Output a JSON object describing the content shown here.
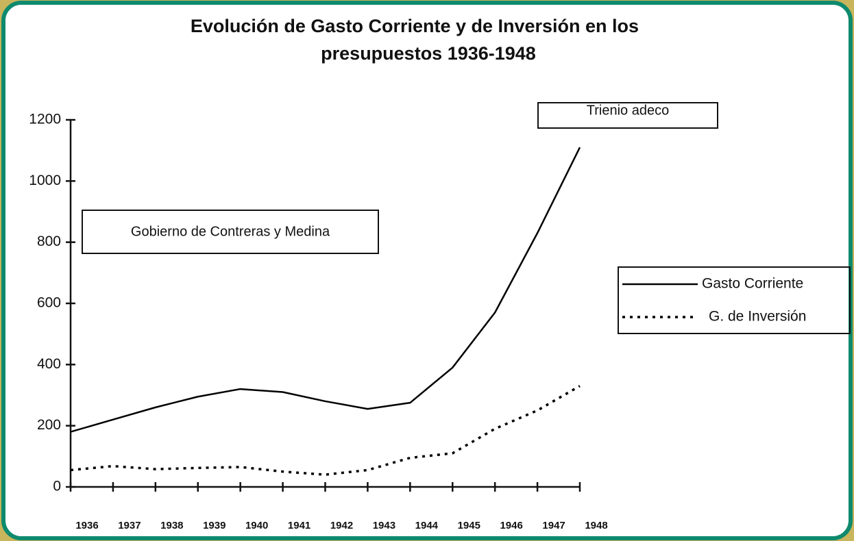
{
  "chart_data": {
    "type": "line",
    "title": [
      "Evolución de Gasto Corriente y de Inversión en los",
      "presupuestos 1936-1948"
    ],
    "x": [
      1936,
      1937,
      1938,
      1939,
      1940,
      1941,
      1942,
      1943,
      1944,
      1945,
      1946,
      1947,
      1948
    ],
    "xlim": [
      1936,
      1948
    ],
    "xticks": [
      1936,
      1937,
      1938,
      1939,
      1940,
      1941,
      1942,
      1943,
      1944,
      1945,
      1946,
      1947,
      1948
    ],
    "ylim": [
      0,
      1200
    ],
    "yticks": [
      0,
      200,
      400,
      600,
      800,
      1000,
      1200
    ],
    "grid": false,
    "legend": "right",
    "series": [
      {
        "name": "Gasto Corriente",
        "color": "#000000",
        "style": "solid",
        "values": [
          180,
          220,
          260,
          295,
          320,
          310,
          280,
          255,
          275,
          390,
          570,
          830,
          1110
        ]
      },
      {
        "name": "G. de Inversión",
        "color": "#000000",
        "style": "dotted",
        "values": [
          55,
          68,
          58,
          62,
          65,
          50,
          40,
          55,
          95,
          110,
          190,
          250,
          330
        ]
      }
    ],
    "annotations": [
      "Trienio adeco",
      "Gobierno de Contreras y Medina"
    ]
  }
}
